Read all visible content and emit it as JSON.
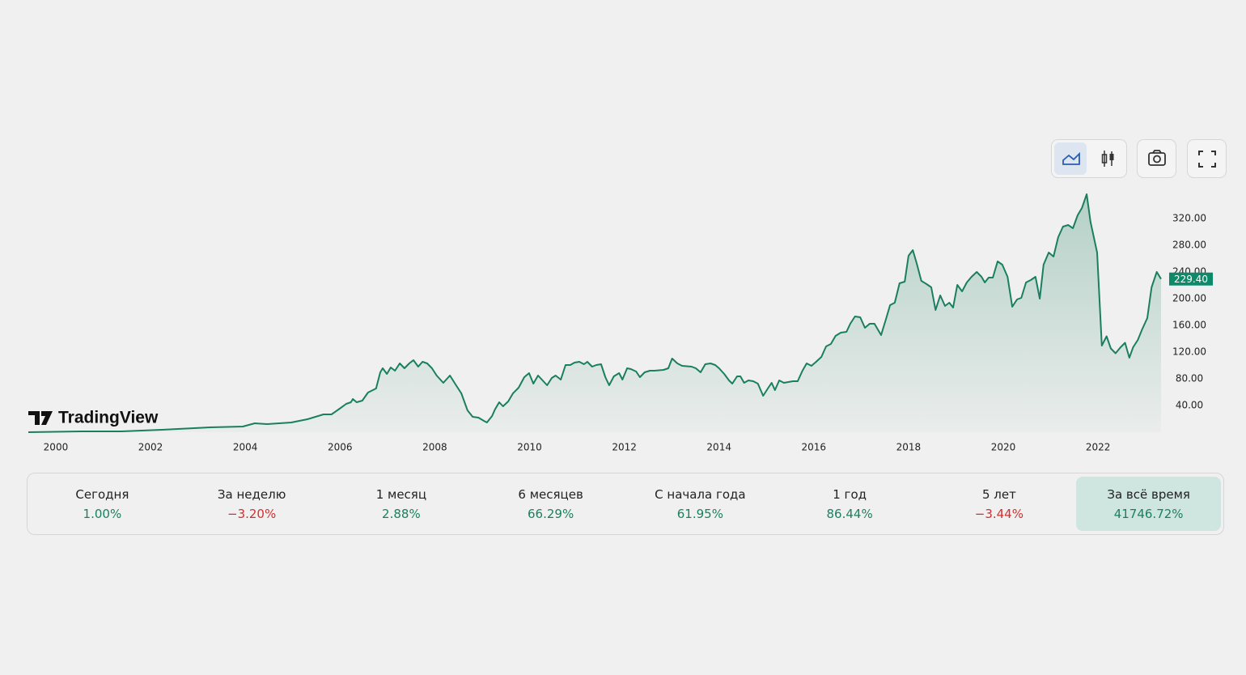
{
  "chart_data": {
    "type": "area",
    "watermark": "TradingView",
    "color": "#1a7f5f",
    "x": [
      1999.42,
      2000.53,
      2001.38,
      2002.24,
      2002.58,
      2003.26,
      2003.95,
      2004.2,
      2004.46,
      2004.97,
      2005.31,
      2005.65,
      2005.82,
      2005.99,
      2006.13,
      2006.23,
      2006.27,
      2006.35,
      2006.47,
      2006.59,
      2006.76,
      2006.85,
      2006.9,
      2006.99,
      2007.07,
      2007.16,
      2007.26,
      2007.36,
      2007.46,
      2007.55,
      2007.65,
      2007.74,
      2007.84,
      2007.94,
      2008.04,
      2008.18,
      2008.32,
      2008.45,
      2008.56,
      2008.69,
      2008.8,
      2008.92,
      2009.04,
      2009.1,
      2009.21,
      2009.27,
      2009.36,
      2009.44,
      2009.55,
      2009.65,
      2009.77,
      2009.89,
      2009.99,
      2010.08,
      2010.18,
      2010.26,
      2010.37,
      2010.47,
      2010.55,
      2010.66,
      2010.76,
      2010.86,
      2010.95,
      2011.05,
      2011.15,
      2011.22,
      2011.32,
      2011.41,
      2011.51,
      2011.6,
      2011.68,
      2011.78,
      2011.89,
      2011.96,
      2012.06,
      2012.14,
      2012.25,
      2012.33,
      2012.43,
      2012.54,
      2012.64,
      2012.83,
      2012.93,
      2013.01,
      2013.12,
      2013.22,
      2013.42,
      2013.51,
      2013.61,
      2013.71,
      2013.82,
      2013.92,
      2014.0,
      2014.11,
      2014.21,
      2014.28,
      2014.38,
      2014.45,
      2014.53,
      2014.62,
      2014.72,
      2014.82,
      2014.93,
      2015.03,
      2015.11,
      2015.18,
      2015.27,
      2015.37,
      2015.56,
      2015.66,
      2015.76,
      2015.85,
      2015.95,
      2016.05,
      2016.16,
      2016.26,
      2016.36,
      2016.46,
      2016.57,
      2016.69,
      2016.77,
      2016.87,
      2016.98,
      2017.08,
      2017.18,
      2017.28,
      2017.42,
      2017.52,
      2017.61,
      2017.71,
      2017.81,
      2017.92,
      2018.0,
      2018.09,
      2018.17,
      2018.27,
      2018.38,
      2018.48,
      2018.57,
      2018.67,
      2018.77,
      2018.86,
      2018.94,
      2019.03,
      2019.13,
      2019.23,
      2019.33,
      2019.44,
      2019.54,
      2019.61,
      2019.69,
      2019.78,
      2019.88,
      2019.98,
      2020.09,
      2020.19,
      2020.29,
      2020.38,
      2020.48,
      2020.58,
      2020.68,
      2020.77,
      2020.85,
      2020.96,
      2021.06,
      2021.16,
      2021.26,
      2021.37,
      2021.47,
      2021.57,
      2021.66,
      2021.76,
      2021.84,
      2021.98,
      2022.08,
      2022.18,
      2022.27,
      2022.37,
      2022.47,
      2022.57,
      2022.66,
      2022.74,
      2022.84,
      2022.93,
      2023.04,
      2023.13,
      2023.24,
      2023.33
    ],
    "values": [
      0,
      1.2,
      1.2,
      3.6,
      4.8,
      7.3,
      8.5,
      13.3,
      12.1,
      14.5,
      19.4,
      26.7,
      26.7,
      35.2,
      42.4,
      44.8,
      49.7,
      44.8,
      47.3,
      59.4,
      65.5,
      89.7,
      95.8,
      87.3,
      96.9,
      92.1,
      103.0,
      95.8,
      103.0,
      107.9,
      98.2,
      105.5,
      103.0,
      95.8,
      84.8,
      73.9,
      84.8,
      70.3,
      58.2,
      32.7,
      23.0,
      21.8,
      16.9,
      14.5,
      24.2,
      33.9,
      44.8,
      38.8,
      46.1,
      58.2,
      66.7,
      82.4,
      88.5,
      72.7,
      84.8,
      78.8,
      70.3,
      81.2,
      84.8,
      78.8,
      100.6,
      100.6,
      104.2,
      105.5,
      101.8,
      105.5,
      98.2,
      100.6,
      101.8,
      82.4,
      70.3,
      83.6,
      88.5,
      78.8,
      95.8,
      94.5,
      90.9,
      82.4,
      89.7,
      92.1,
      92.1,
      93.3,
      95.8,
      110.3,
      103.0,
      99.4,
      98.2,
      95.8,
      89.7,
      101.8,
      103.0,
      100.6,
      95.8,
      87.3,
      77.6,
      72.7,
      83.6,
      83.6,
      73.9,
      77.6,
      76.4,
      72.7,
      54.5,
      65.5,
      73.9,
      63.0,
      77.6,
      73.9,
      76.4,
      76.4,
      92.1,
      103.0,
      99.4,
      105.5,
      112.7,
      128.5,
      132.1,
      144.2,
      149.1,
      150.3,
      162.4,
      173.3,
      172.1,
      156.4,
      162.4,
      162.4,
      145.5,
      168.5,
      190.3,
      194.0,
      223.0,
      225.5,
      264.2,
      272.7,
      253.3,
      226.7,
      221.8,
      217.0,
      183.0,
      204.8,
      189.1,
      193.9,
      186.7,
      220.6,
      210.9,
      224.2,
      232.7,
      240.0,
      232.7,
      224.2,
      231.5,
      231.5,
      255.8,
      250.9,
      232.7,
      187.9,
      198.8,
      201.2,
      224.2,
      227.9,
      232.7,
      200.0,
      250.9,
      269.1,
      263.0,
      292.1,
      307.9,
      310.3,
      305.5,
      324.8,
      335.8,
      356.4,
      315.2,
      269.1,
      129.7,
      143.6,
      125.5,
      118.2,
      126.7,
      133.9,
      111.5,
      127.3,
      138.2,
      153.9,
      170.9,
      217.0,
      240.0,
      229.4
    ],
    "xlim": [
      1999.42,
      2023.33
    ],
    "xticks": [
      2000,
      2002,
      2004,
      2006,
      2008,
      2010,
      2012,
      2014,
      2016,
      2018,
      2020,
      2022
    ],
    "ylim": [
      0,
      360
    ],
    "yticks": [
      {
        "value": 40,
        "label": "40.00"
      },
      {
        "value": 80,
        "label": "80.00"
      },
      {
        "value": 120,
        "label": "120.00"
      },
      {
        "value": 160,
        "label": "160.00"
      },
      {
        "value": 200,
        "label": "200.00"
      },
      {
        "value": 240,
        "label": "240.00"
      },
      {
        "value": 280,
        "label": "280.00"
      },
      {
        "value": 320,
        "label": "320.00"
      }
    ],
    "last_price": {
      "value": 229.4,
      "label": "229.40"
    },
    "grid": false
  },
  "periods": [
    {
      "label": "Сегодня",
      "value": "1.00%"
    },
    {
      "label": "За неделю",
      "value": "−3.20%"
    },
    {
      "label": "1 месяц",
      "value": "2.88%"
    },
    {
      "label": "6 месяцев",
      "value": "66.29%"
    },
    {
      "label": "С начала года",
      "value": "61.95%"
    },
    {
      "label": "1 год",
      "value": "86.44%"
    },
    {
      "label": "5 лет",
      "value": "−3.44%"
    },
    {
      "label": "За всё время",
      "value": "41746.72%"
    }
  ],
  "active_period": 7
}
